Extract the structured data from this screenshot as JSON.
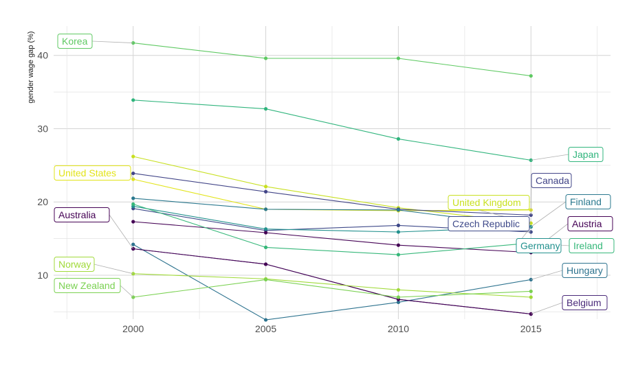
{
  "chart_data": {
    "type": "line",
    "ylabel": "gender wage gap (%)",
    "xlabel": "",
    "x": [
      2000,
      2005,
      2010,
      2015
    ],
    "xlim": [
      1997,
      2018
    ],
    "ylim": [
      4,
      44
    ],
    "y_ticks": [
      10,
      20,
      30,
      40
    ],
    "x_ticks": [
      2000,
      2005,
      2010,
      2015
    ],
    "grid": true,
    "legend": "none (direct labels)",
    "series": [
      {
        "name": "Korea",
        "values": [
          41.7,
          39.6,
          39.6,
          37.2
        ],
        "color": "#5ec962"
      },
      {
        "name": "Japan",
        "values": [
          33.9,
          32.7,
          28.6,
          25.7
        ],
        "color": "#2fb47c"
      },
      {
        "name": "United States",
        "values": [
          23.1,
          19.0,
          18.8,
          18.9
        ],
        "color": "#e2e418"
      },
      {
        "name": "United Kingdom",
        "values": [
          26.2,
          22.1,
          19.2,
          17.1
        ],
        "color": "#c8e020"
      },
      {
        "name": "Canada",
        "values": [
          23.9,
          21.4,
          19.0,
          18.2
        ],
        "color": "#414487"
      },
      {
        "name": "Finland",
        "values": [
          20.5,
          19.0,
          18.9,
          16.6
        ],
        "color": "#2a788e"
      },
      {
        "name": "Czech Republic",
        "values": [
          19.1,
          16.1,
          16.8,
          15.9
        ],
        "color": "#3e4989"
      },
      {
        "name": "Austria",
        "values": [
          17.3,
          15.8,
          14.1,
          13.1
        ],
        "color": "#440154"
      },
      {
        "name": "Germany",
        "values": [
          19.4,
          16.3,
          15.9,
          16.6
        ],
        "color": "#21908d"
      },
      {
        "name": "Ireland",
        "values": [
          19.7,
          13.8,
          12.8,
          14.4
        ],
        "color": "#35b779"
      },
      {
        "name": "Hungary",
        "values": [
          14.2,
          3.9,
          6.3,
          9.4
        ],
        "color": "#2c728e"
      },
      {
        "name": "Belgium",
        "values": [
          13.6,
          11.5,
          6.7,
          4.7
        ],
        "color": "#482878"
      },
      {
        "name": "Australia",
        "values": [
          13.6,
          11.5,
          6.7,
          4.7
        ],
        "color": "#440154"
      },
      {
        "name": "Norway",
        "values": [
          10.2,
          9.5,
          8.0,
          7.0
        ],
        "color": "#a0da39"
      },
      {
        "name": "New Zealand",
        "values": [
          7.0,
          9.4,
          7.0,
          7.8
        ],
        "color": "#7ad151"
      }
    ]
  },
  "labels": [
    {
      "name": "Korea",
      "color": "#5ec962"
    },
    {
      "name": "Japan",
      "color": "#2fb47c"
    },
    {
      "name": "United States",
      "color": "#e2e418"
    },
    {
      "name": "United Kingdom",
      "color": "#c8e020"
    },
    {
      "name": "Canada",
      "color": "#414487"
    },
    {
      "name": "Finland",
      "color": "#2a788e"
    },
    {
      "name": "Czech Republic",
      "color": "#3e4989"
    },
    {
      "name": "Austria",
      "color": "#440154"
    },
    {
      "name": "Germany",
      "color": "#21908d"
    },
    {
      "name": "Ireland",
      "color": "#35b779"
    },
    {
      "name": "Hungary",
      "color": "#2c728e"
    },
    {
      "name": "Belgium",
      "color": "#482878"
    },
    {
      "name": "Australia",
      "color": "#440154"
    },
    {
      "name": "Norway",
      "color": "#a0da39"
    },
    {
      "name": "New Zealand",
      "color": "#7ad151"
    }
  ]
}
